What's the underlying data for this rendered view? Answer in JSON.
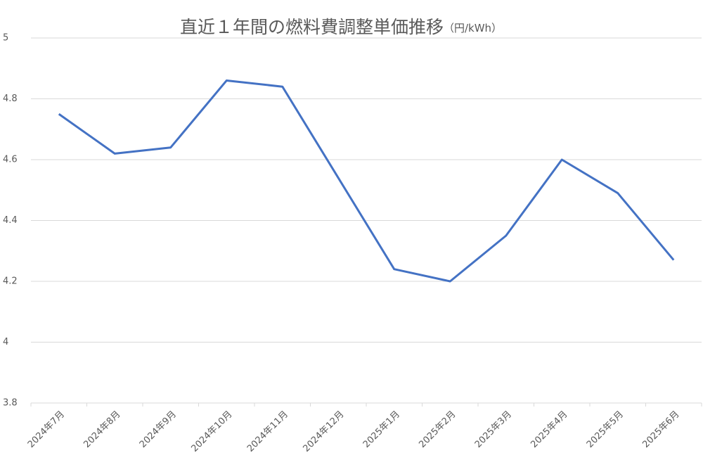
{
  "chart_data": {
    "type": "line",
    "title": "直近１年間の燃料費調整単価推移",
    "subtitle": "（円/kWh）",
    "categories": [
      "2024年7月",
      "2024年8月",
      "2024年9月",
      "2024年10月",
      "2024年11月",
      "2024年12月",
      "2025年1月",
      "2025年2月",
      "2025年3月",
      "2025年4月",
      "2025年5月",
      "2025年6月"
    ],
    "series": [
      {
        "name": "燃料費調整単価",
        "color": "#4472c4",
        "values": [
          4.75,
          4.62,
          4.64,
          4.86,
          4.84,
          4.54,
          4.24,
          4.2,
          4.35,
          4.6,
          4.49,
          4.27
        ]
      }
    ],
    "ylim": [
      3.8,
      5
    ],
    "yticks": [
      3.8,
      4,
      4.2,
      4.4,
      4.6,
      4.8,
      5
    ],
    "grid": true
  }
}
